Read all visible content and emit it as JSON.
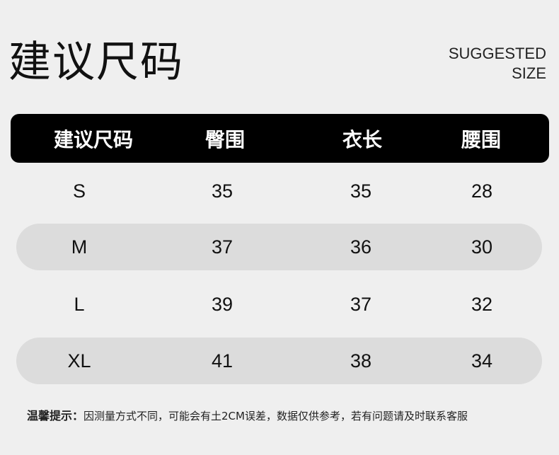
{
  "title": "建议尺码",
  "title_en": [
    "SUGGESTED",
    "SIZE"
  ],
  "table": {
    "headers": [
      "建议尺码",
      "臀围",
      "衣长",
      "腰围"
    ],
    "rows": [
      [
        "S",
        "35",
        "35",
        "28"
      ],
      [
        "M",
        "37",
        "36",
        "30"
      ],
      [
        "L",
        "39",
        "37",
        "32"
      ],
      [
        "XL",
        "41",
        "38",
        "34"
      ]
    ]
  },
  "note": {
    "label": "温馨提示：",
    "text": "因测量方式不同，可能会有土2CM误差，数据仅供参考，若有问题请及时联系客服"
  }
}
